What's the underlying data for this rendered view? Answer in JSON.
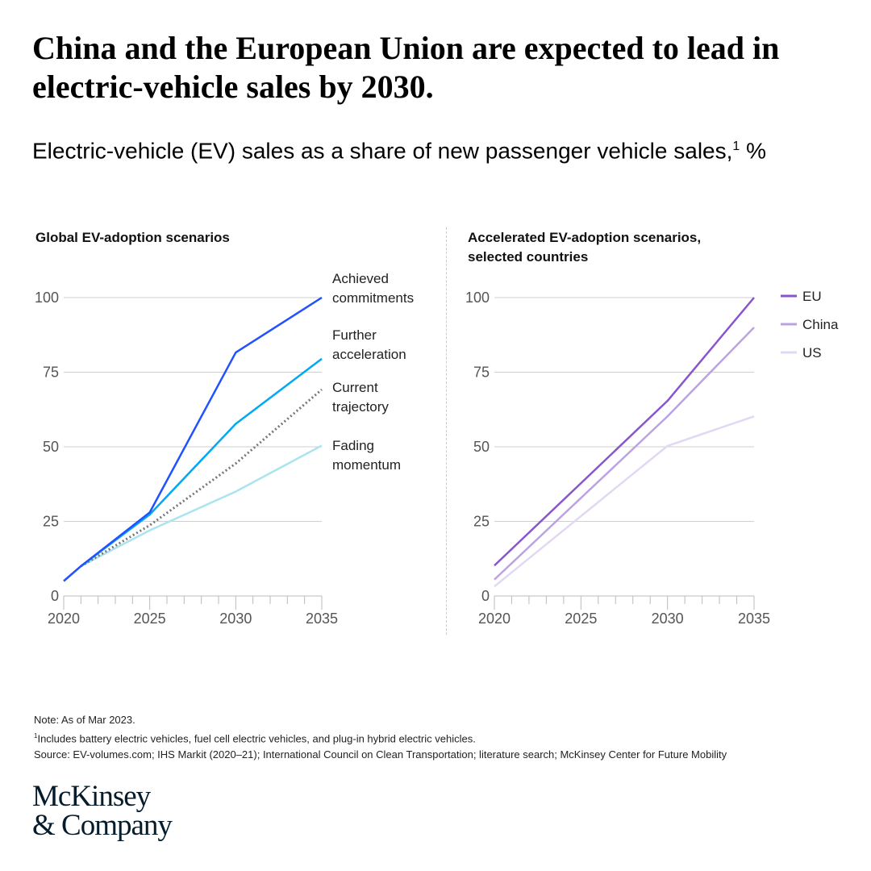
{
  "title": "China and the European Union are expected to lead in electric-vehicle sales by 2030.",
  "subtitle": "Electric-vehicle (EV) sales as a share of new passenger vehicle sales,",
  "subtitle_footnote": "1",
  "subtitle_unit": " %",
  "chart_data": [
    {
      "type": "line",
      "title": "Global EV-adoption scenarios",
      "x_ticks": [
        2020,
        2025,
        2030,
        2035
      ],
      "y_ticks": [
        0,
        25,
        50,
        75,
        100
      ],
      "xlim": [
        2020,
        2035
      ],
      "ylim": [
        0,
        100
      ],
      "grid": true,
      "legend": "direct labels at right",
      "series": [
        {
          "name": "Achieved commitments",
          "label_lines": [
            "Achieved",
            "commitments"
          ],
          "color": "#2251ff",
          "dashed": false,
          "x": [
            2020,
            2021,
            2025,
            2030,
            2035
          ],
          "y": [
            5,
            10,
            28,
            81.6,
            100
          ]
        },
        {
          "name": "Further acceleration",
          "label_lines": [
            "Further",
            "acceleration"
          ],
          "color": "#00a9f4",
          "dashed": false,
          "x": [
            2021,
            2025,
            2030,
            2035
          ],
          "y": [
            10,
            27.3,
            57.7,
            79.5
          ]
        },
        {
          "name": "Current trajectory",
          "label_lines": [
            "Current",
            "trajectory"
          ],
          "color": "#777777",
          "dashed": true,
          "x": [
            2021,
            2025,
            2030,
            2035
          ],
          "y": [
            10,
            23.7,
            44.4,
            69.2
          ]
        },
        {
          "name": "Fading momentum",
          "label_lines": [
            "Fading",
            "momentum"
          ],
          "color": "#a9e4ef",
          "dashed": false,
          "x": [
            2021,
            2025,
            2030,
            2035
          ],
          "y": [
            10,
            22,
            35,
            50.4
          ]
        }
      ]
    },
    {
      "type": "line",
      "title": "Accelerated EV-adoption scenarios, selected countries",
      "x_ticks": [
        2020,
        2025,
        2030,
        2035
      ],
      "y_ticks": [
        0,
        25,
        50,
        75,
        100
      ],
      "xlim": [
        2020,
        2035
      ],
      "ylim": [
        0,
        100
      ],
      "grid": true,
      "legend": "top-right",
      "series": [
        {
          "name": "EU",
          "color": "#8855cc",
          "x": [
            2020,
            2030,
            2035
          ],
          "y": [
            10.2,
            65.4,
            100
          ]
        },
        {
          "name": "China",
          "color": "#bba3e3",
          "x": [
            2020,
            2030,
            2035
          ],
          "y": [
            5.5,
            60.2,
            90
          ]
        },
        {
          "name": "US",
          "color": "#e2d8f3",
          "x": [
            2020,
            2030,
            2035
          ],
          "y": [
            3.2,
            50.3,
            60.2
          ]
        }
      ]
    }
  ],
  "notes": {
    "note": "Note: As of Mar 2023.",
    "footnote_marker": "1",
    "footnote": "Includes battery electric vehicles, fuel cell electric vehicles, and plug-in hybrid electric vehicles.",
    "source": "Source: EV-volumes.com; IHS Markit (2020–21); International Council on Clean Transportation; literature search; McKinsey Center for Future Mobility"
  },
  "logo": {
    "line1": "McKinsey",
    "line2": "& Company"
  }
}
